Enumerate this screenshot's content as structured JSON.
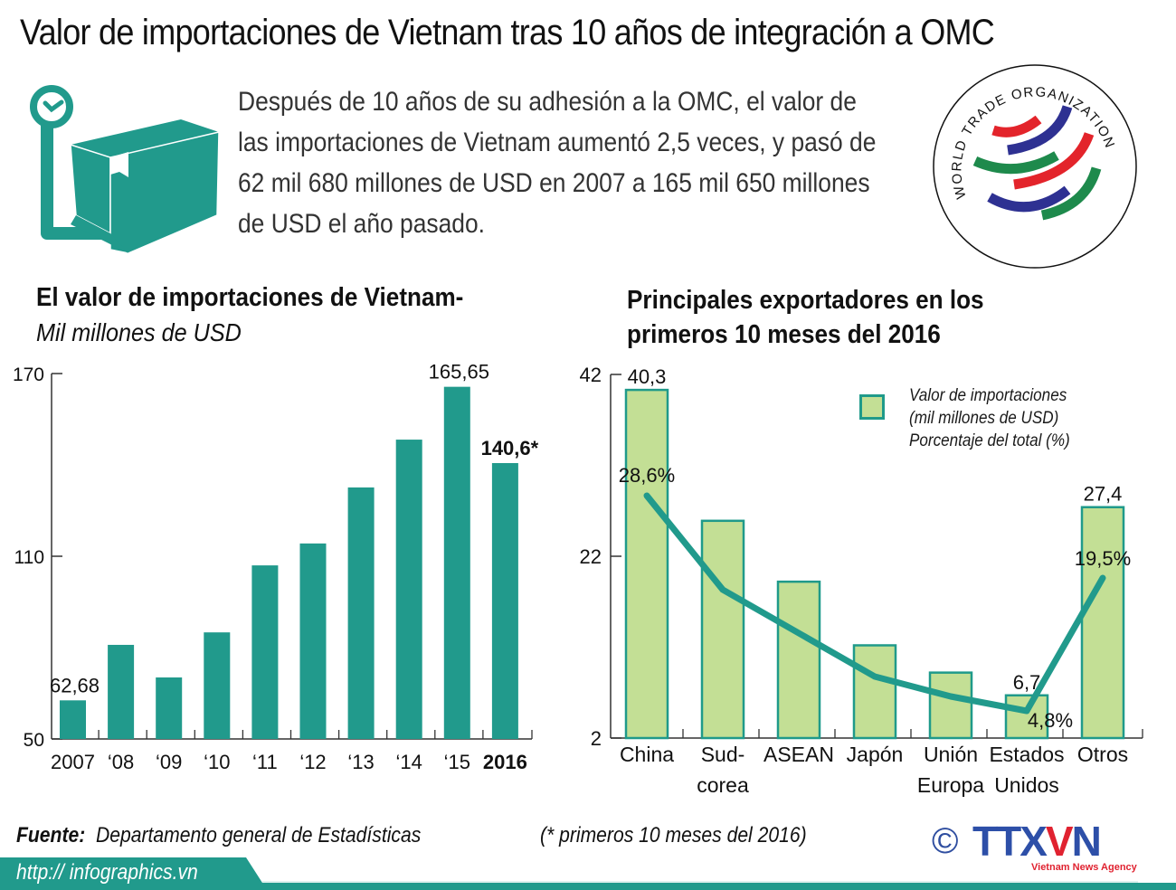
{
  "header": {
    "title": "Valor de importaciones de Vietnam tras 10 años de integración a OMC",
    "intro": "Después de 10 años de su adhesión a la OMC, el valor de las importaciones de Vietnam aumentó 2,5 veces, y pasó de 62 mil 680 millones de USD en 2007 a 165 mil 650 millones de USD el año pasado.",
    "icon": "package-scale-icon",
    "logo": {
      "name": "wto-logo",
      "text_top": "WORLD TRADE ORGANIZATION",
      "colors": [
        "#e3242b",
        "#2e3192",
        "#1e8a4c"
      ]
    }
  },
  "colors": {
    "teal": "#219a8c",
    "light_green": "#c3df95",
    "bar_border": "#1f9a8a",
    "ttxvn_blue": "#2d4fa8",
    "ttxvn_red": "#e02230"
  },
  "left_chart": {
    "title": "El valor de importaciones de Vietnam-",
    "subtitle": "Mil millones de USD"
  },
  "right_chart": {
    "title_line1": "Principales exportadores en los",
    "title_line2": "primeros 10 meses del 2016",
    "legend": {
      "line1": "Valor de importaciones",
      "line2": "(mil millones de USD)",
      "line3": "Porcentaje del total (%)"
    }
  },
  "chart_data": [
    {
      "type": "bar",
      "title": "El valor de importaciones de Vietnam- Mil millones de USD",
      "xlabel": "",
      "ylabel": "Mil millones de USD",
      "ylim": [
        50,
        170
      ],
      "yticks": [
        "170",
        "110",
        "50"
      ],
      "categories": [
        "2007",
        "‘08",
        "‘09",
        "‘10",
        "‘11",
        "‘12",
        "‘13",
        "‘14",
        "‘15",
        "2016"
      ],
      "values": [
        62.68,
        80.9,
        70.2,
        85.0,
        107.0,
        114.2,
        132.6,
        148.3,
        165.65,
        140.6
      ],
      "labels": {
        "0": "62,68",
        "8": "165,65",
        "9": "140,6*"
      },
      "grid": false
    },
    {
      "type": "bar+line",
      "title": "Principales exportadores en los primeros 10 meses del 2016",
      "ylim": [
        2,
        42
      ],
      "yticks": [
        "42",
        "22",
        "2"
      ],
      "categories": [
        "China",
        "Sud-corea",
        "ASEAN",
        "Japón",
        "Unión Europa",
        "Estados Unidos",
        "Otros"
      ],
      "category_lines": [
        [
          "China"
        ],
        [
          "Sud-",
          "corea"
        ],
        [
          "ASEAN"
        ],
        [
          "Japón"
        ],
        [
          "Unión",
          "Europa"
        ],
        [
          "Estados",
          "Unidos"
        ],
        [
          "Otros"
        ]
      ],
      "series": [
        {
          "name": "Valor de importaciones (mil millones de USD)",
          "type": "bar",
          "values": [
            40.3,
            25.9,
            19.2,
            12.2,
            9.2,
            6.7,
            27.4
          ],
          "labels": {
            "0": "40,3",
            "5": "6,7",
            "6": "27,4"
          }
        },
        {
          "name": "Porcentaje del total (%)",
          "type": "line",
          "values": [
            28.6,
            18.2,
            13.4,
            8.6,
            6.4,
            4.8,
            19.5
          ],
          "labels": {
            "0": "28,6%",
            "5": "4,8%",
            "6": "19,5%"
          }
        }
      ],
      "legend_position": "top-right",
      "grid": false
    }
  ],
  "footer": {
    "source_label": "Fuente:",
    "source_text": "Departamento general de Estadísticas",
    "note": "(* primeros 10 meses del 2016)",
    "url": "http:// infographics.vn",
    "copyright": "©",
    "agency_logo_main": "TTX",
    "agency_logo_v": "V",
    "agency_logo_n": "N",
    "agency_tagline": "Vietnam News Agency"
  }
}
